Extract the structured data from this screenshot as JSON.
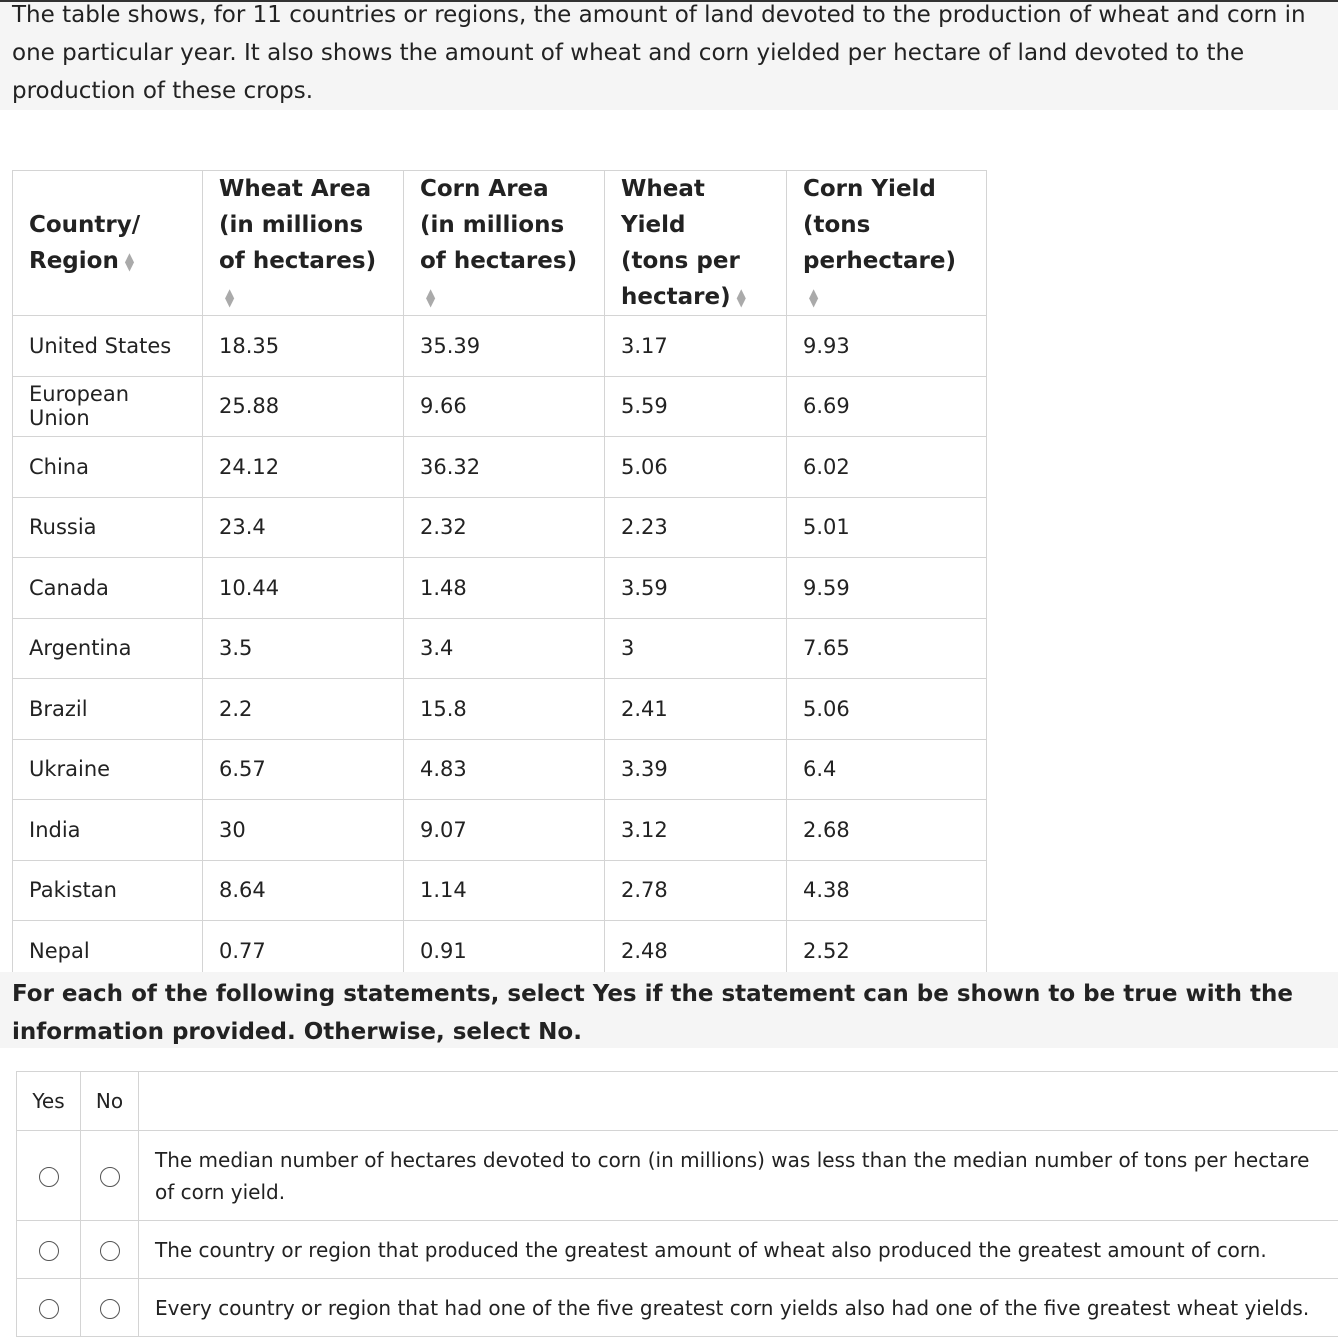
{
  "intro": "The table shows, for 11 countries or regions, the amount of land devoted to the production of wheat and corn in one particular year. It also shows the amount of wheat and corn yielded per hectare of land devoted to the production of these crops.",
  "table": {
    "headers": [
      {
        "line1": "Country/",
        "line2": "Region",
        "line3": ""
      },
      {
        "line1": "Wheat Area",
        "line2": "(in millions",
        "line3": "of hectares)"
      },
      {
        "line1": "Corn Area",
        "line2": "(in millions",
        "line3": "of hectares)"
      },
      {
        "line1": "Wheat Yield",
        "line2": "(tons per",
        "line3": "hectare)"
      },
      {
        "line1": "Corn Yield",
        "line2": "(tons",
        "line3": "perhectare)"
      }
    ],
    "rows": [
      [
        "United States",
        "18.35",
        "35.39",
        "3.17",
        "9.93"
      ],
      [
        "European Union",
        "25.88",
        "9.66",
        "5.59",
        "6.69"
      ],
      [
        "China",
        "24.12",
        "36.32",
        "5.06",
        "6.02"
      ],
      [
        "Russia",
        "23.4",
        "2.32",
        "2.23",
        "5.01"
      ],
      [
        "Canada",
        "10.44",
        "1.48",
        "3.59",
        "9.59"
      ],
      [
        "Argentina",
        "3.5",
        "3.4",
        "3",
        "7.65"
      ],
      [
        "Brazil",
        "2.2",
        "15.8",
        "2.41",
        "5.06"
      ],
      [
        "Ukraine",
        "6.57",
        "4.83",
        "3.39",
        "6.4"
      ],
      [
        "India",
        "30",
        "9.07",
        "3.12",
        "2.68"
      ],
      [
        "Pakistan",
        "8.64",
        "1.14",
        "2.78",
        "4.38"
      ],
      [
        "Nepal",
        "0.77",
        "0.91",
        "2.48",
        "2.52"
      ]
    ]
  },
  "instruction": "For each of the following statements, select Yes if the statement can be shown to be true with the information provided. Otherwise, select No.",
  "questions": {
    "yes_label": "Yes",
    "no_label": "No",
    "statements": [
      "The median number of hectares devoted to corn (in millions) was less than the median number of tons per hectare of corn yield.",
      "The country or region that produced the greatest amount of wheat also produced the greatest amount of corn.",
      "Every country or region that had one of the five greatest corn yields also had one of the five greatest wheat yields."
    ]
  }
}
